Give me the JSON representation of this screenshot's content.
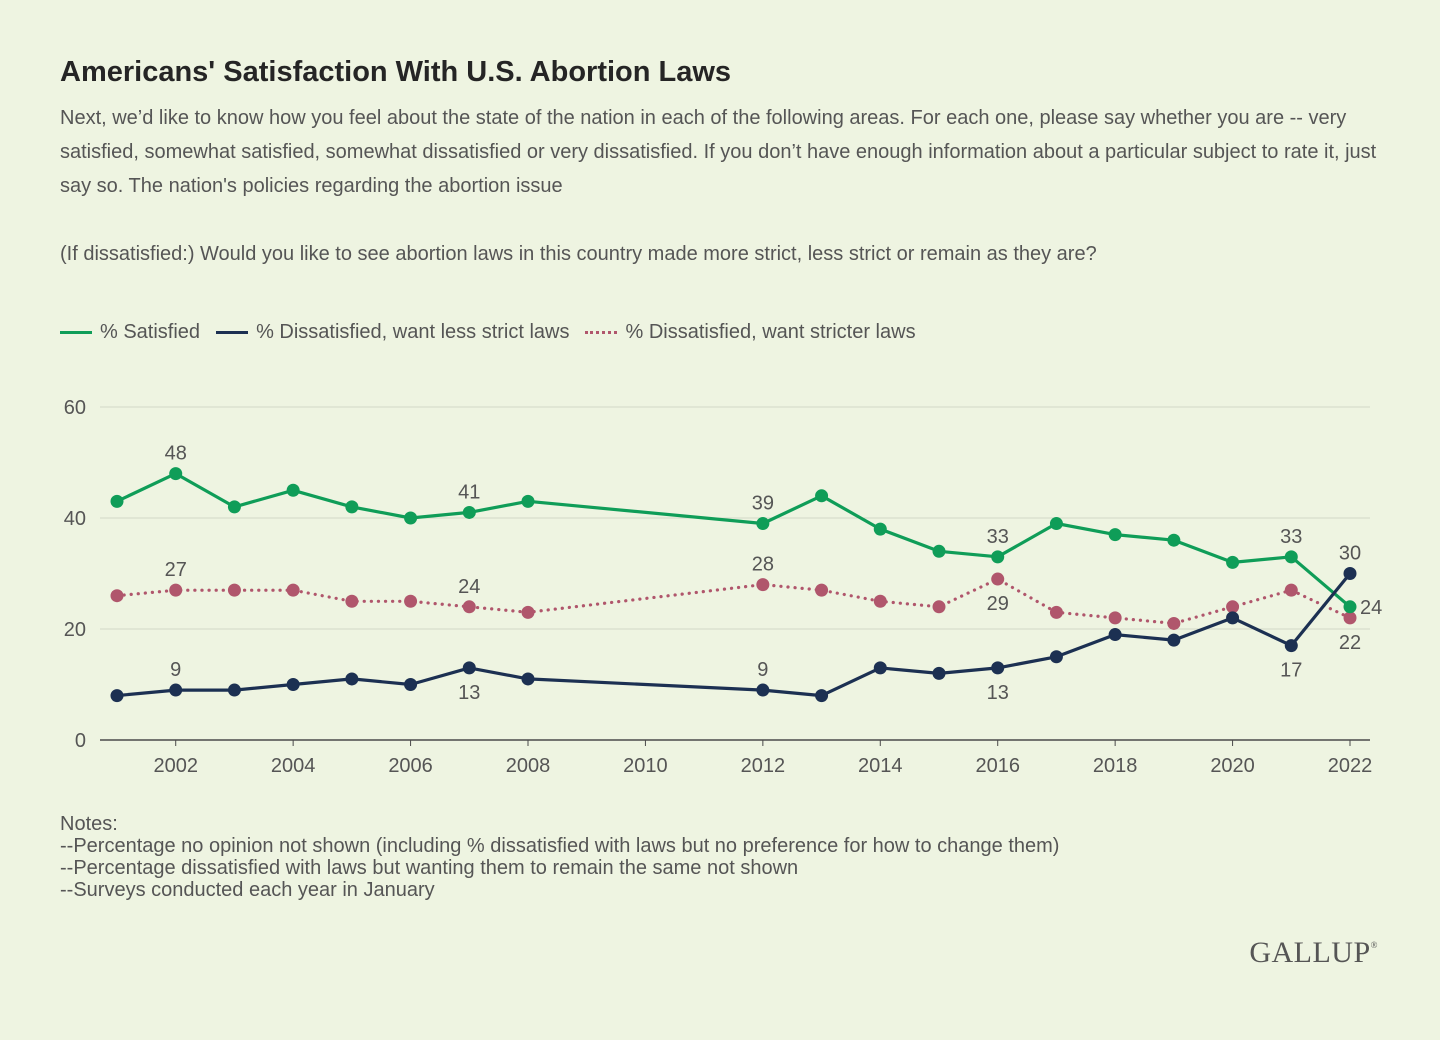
{
  "title": "Americans' Satisfaction With U.S. Abortion Laws",
  "question": "Next, we’d like to know how you feel about the state of the nation in each of the following areas. For each one, please say whether you are -- very satisfied, somewhat satisfied, somewhat dissatisfied or very dissatisfied. If you don’t have enough information about a particular subject to rate it, just say so. The nation's policies regarding the abortion issue",
  "followup": "(If dissatisfied:) Would you like to see abortion laws in this country made more strict, less strict or remain as they are?",
  "notes": [
    "Notes:",
    "--Percentage no opinion not shown (including % dissatisfied with laws but no preference for how to change them)",
    "--Percentage dissatisfied with laws but wanting them to remain the same not shown",
    "--Surveys conducted each year in January"
  ],
  "brand": "GALLUP",
  "brand_mark": "®",
  "colors": {
    "background": "#eef4e1",
    "gridline": "#d2d9c6",
    "label": "#555555"
  },
  "chart_data": {
    "type": "line",
    "x": [
      2001,
      2002,
      2003,
      2004,
      2005,
      2006,
      2007,
      2008,
      2012,
      2013,
      2014,
      2015,
      2016,
      2017,
      2018,
      2019,
      2020,
      2021,
      2022
    ],
    "xticks": [
      2002,
      2004,
      2006,
      2008,
      2010,
      2012,
      2014,
      2016,
      2018,
      2020,
      2022
    ],
    "yticks": [
      0,
      20,
      40,
      60
    ],
    "xlim": [
      2001,
      2022
    ],
    "ylim": [
      0,
      60
    ],
    "grid": true,
    "legend_position": "top-left",
    "series": [
      {
        "name": "% Satisfied",
        "color": "#0f9d58",
        "dash": "solid",
        "values": [
          43,
          48,
          42,
          45,
          42,
          40,
          41,
          43,
          39,
          44,
          38,
          34,
          33,
          39,
          37,
          36,
          32,
          33,
          24
        ],
        "labels": [
          {
            "year": 2002,
            "text": "48",
            "pos": "above"
          },
          {
            "year": 2007,
            "text": "41",
            "pos": "above"
          },
          {
            "year": 2012,
            "text": "39",
            "pos": "above"
          },
          {
            "year": 2016,
            "text": "33",
            "pos": "above"
          },
          {
            "year": 2021,
            "text": "33",
            "pos": "above"
          },
          {
            "year": 2022,
            "text": "24",
            "pos": "right"
          }
        ]
      },
      {
        "name": "% Dissatisfied, want less strict laws",
        "color": "#1c3052",
        "dash": "solid",
        "values": [
          8,
          9,
          9,
          10,
          11,
          10,
          13,
          11,
          9,
          8,
          13,
          12,
          13,
          15,
          19,
          18,
          22,
          17,
          30
        ],
        "labels": [
          {
            "year": 2002,
            "text": "9",
            "pos": "above"
          },
          {
            "year": 2007,
            "text": "13",
            "pos": "below"
          },
          {
            "year": 2012,
            "text": "9",
            "pos": "above"
          },
          {
            "year": 2016,
            "text": "13",
            "pos": "below"
          },
          {
            "year": 2021,
            "text": "17",
            "pos": "below"
          },
          {
            "year": 2022,
            "text": "30",
            "pos": "above"
          }
        ]
      },
      {
        "name": "% Dissatisfied, want stricter laws",
        "color": "#b0566c",
        "dash": "dotted",
        "values": [
          26,
          27,
          27,
          27,
          25,
          25,
          24,
          23,
          28,
          27,
          25,
          24,
          29,
          23,
          22,
          21,
          24,
          27,
          22
        ],
        "labels": [
          {
            "year": 2002,
            "text": "27",
            "pos": "above"
          },
          {
            "year": 2007,
            "text": "24",
            "pos": "above"
          },
          {
            "year": 2012,
            "text": "28",
            "pos": "above"
          },
          {
            "year": 2016,
            "text": "29",
            "pos": "below"
          },
          {
            "year": 2022,
            "text": "22",
            "pos": "below"
          }
        ]
      }
    ]
  }
}
